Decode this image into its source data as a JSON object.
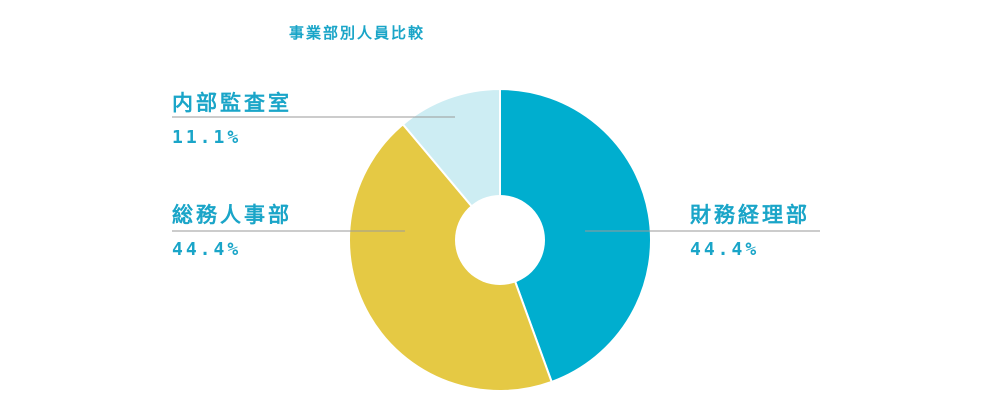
{
  "chart_data": {
    "type": "pie",
    "title": "事業部別人員比較",
    "categories": [
      "財務経理部",
      "総務人事部",
      "内部監査室"
    ],
    "values": [
      44.4,
      44.4,
      11.1
    ],
    "value_labels": [
      "44.4%",
      "44.4%",
      "11.1%"
    ],
    "colors": [
      "#00aecf",
      "#e5c944",
      "#cdedf3"
    ],
    "label_color": "#1aa5c8",
    "leader_line_color": "#9a9a9a",
    "donut_hole": true,
    "legend": "none"
  }
}
